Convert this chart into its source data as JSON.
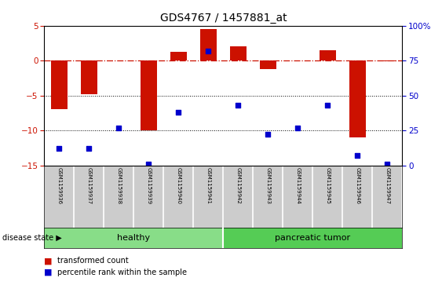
{
  "title": "GDS4767 / 1457881_at",
  "samples": [
    "GSM1159936",
    "GSM1159937",
    "GSM1159938",
    "GSM1159939",
    "GSM1159940",
    "GSM1159941",
    "GSM1159942",
    "GSM1159943",
    "GSM1159944",
    "GSM1159945",
    "GSM1159946",
    "GSM1159947"
  ],
  "transformed_counts": [
    -7.0,
    -4.8,
    0.0,
    -10.0,
    1.2,
    4.5,
    2.0,
    -1.2,
    0.0,
    1.5,
    -11.0,
    -0.1
  ],
  "percentile_ranks": [
    12,
    12,
    27,
    1,
    38,
    82,
    43,
    22,
    27,
    43,
    7,
    1
  ],
  "healthy_count": 6,
  "ylim_left": [
    -15,
    5
  ],
  "ylim_right": [
    0,
    100
  ],
  "right_yticks": [
    0,
    25,
    50,
    75,
    100
  ],
  "right_yticklabels": [
    "0",
    "25",
    "50",
    "75",
    "100%"
  ],
  "left_yticks": [
    -15,
    -10,
    -5,
    0,
    5
  ],
  "dotted_lines": [
    -5,
    -10
  ],
  "bar_color": "#CC1100",
  "dot_color": "#0000CC",
  "healthy_color": "#88DD88",
  "tumor_color": "#55CC55",
  "label_color_bar": "transformed count",
  "label_color_dot": "percentile rank within the sample",
  "disease_label": "disease state",
  "healthy_label": "healthy",
  "tumor_label": "pancreatic tumor",
  "bar_width": 0.55
}
